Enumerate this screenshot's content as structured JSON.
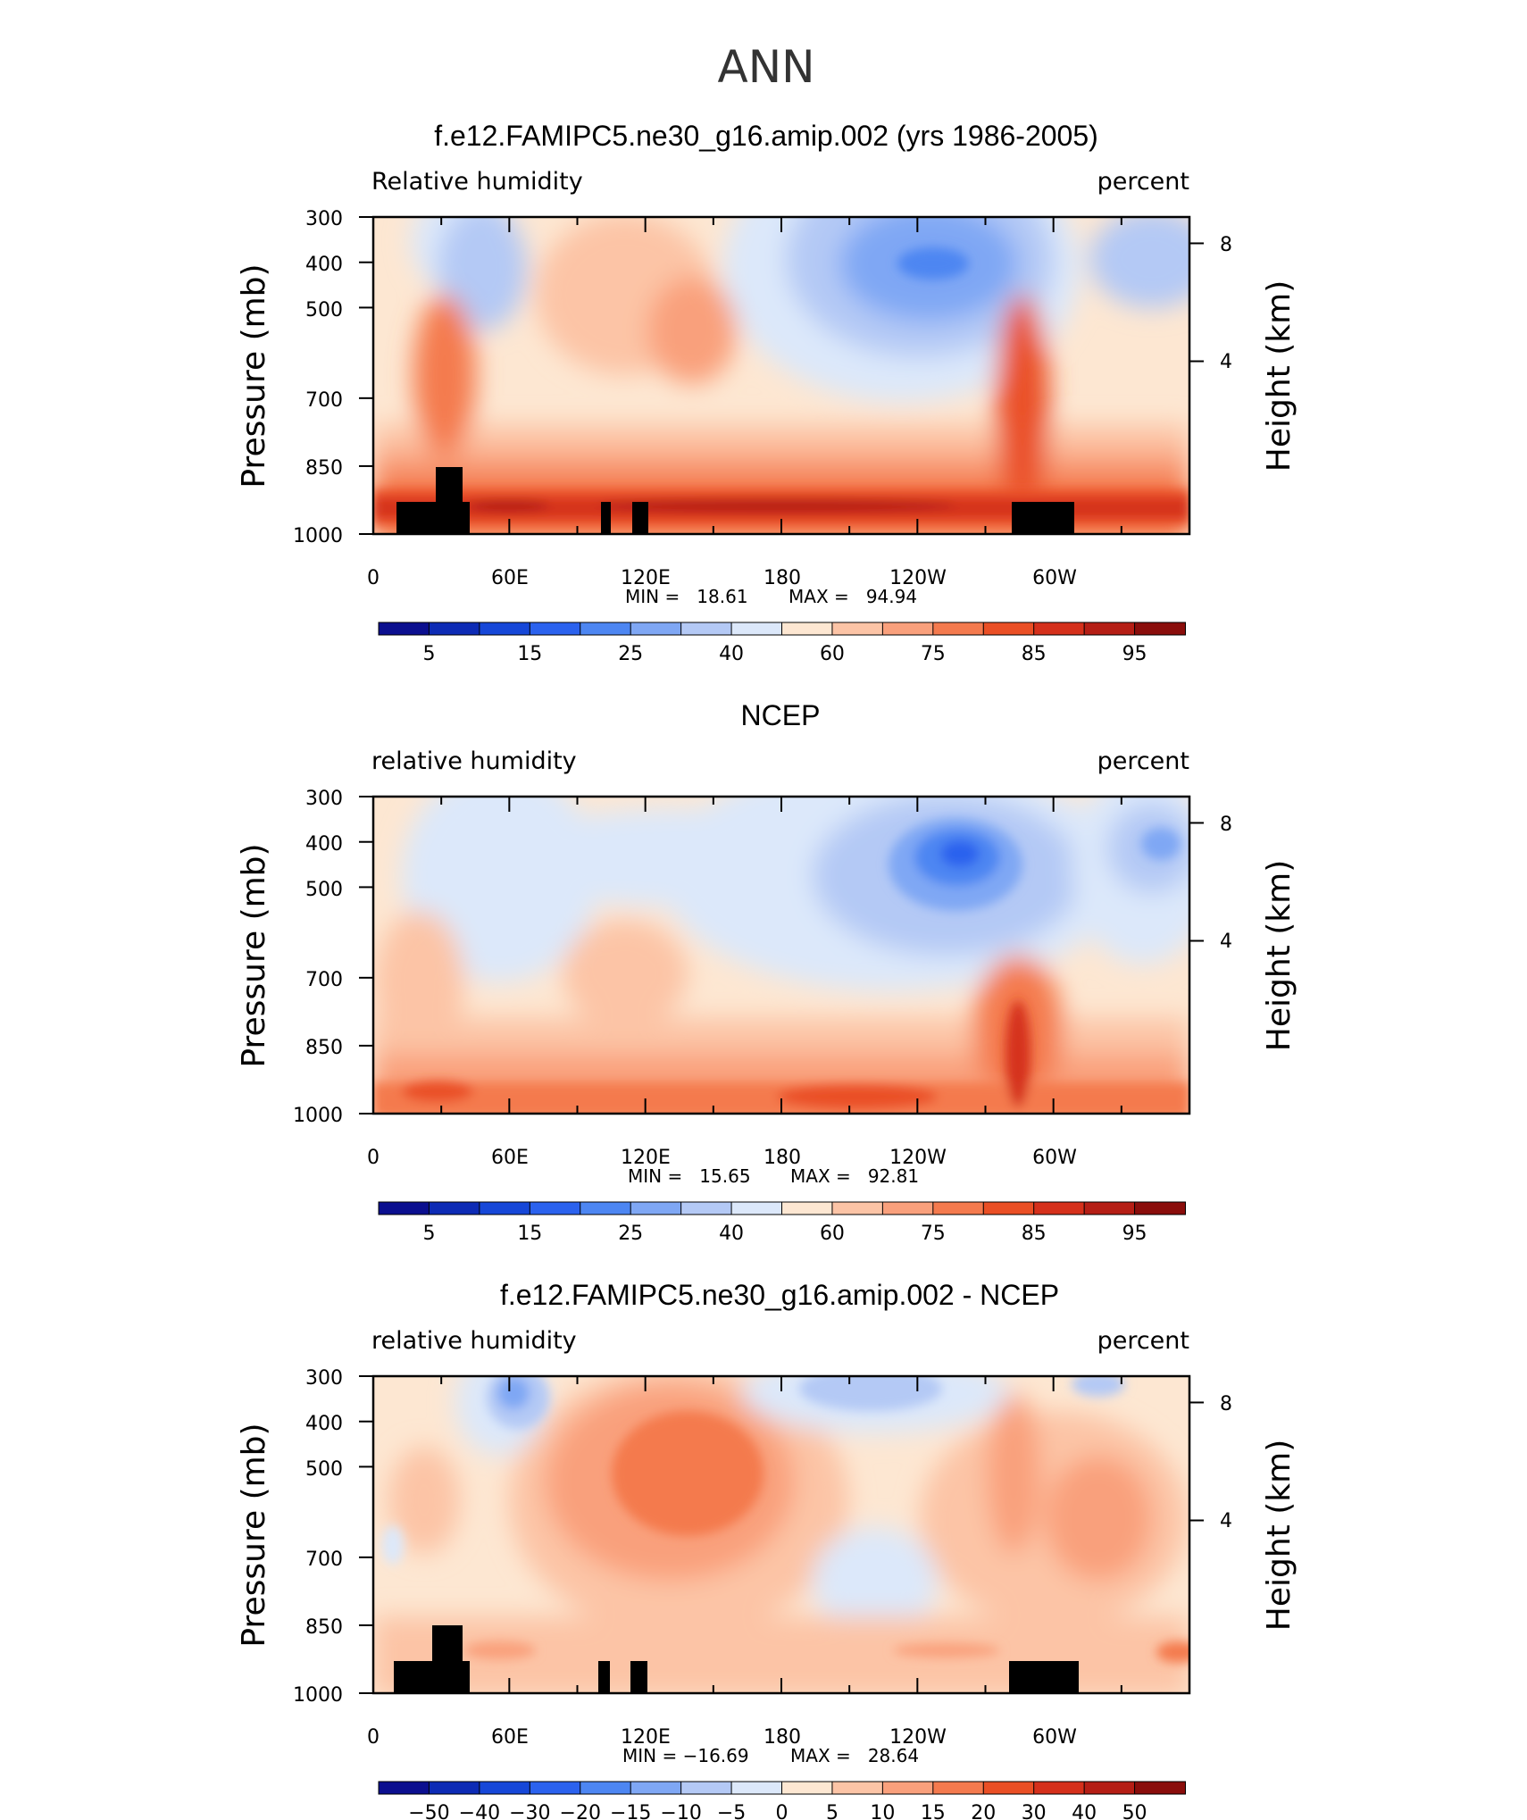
{
  "page_title": "ANN",
  "chart_data": [
    {
      "type": "heatmap",
      "title": "f.e12.FAMIPC5.ne30_g16.amip.002 (yrs 1986-2005)",
      "left_label": "Relative humidity",
      "right_label": "percent",
      "ylabel": "Pressure (mb)",
      "y2label": "Height (km)",
      "x_ticklabels": [
        "0",
        "60E",
        "120E",
        "180",
        "120W",
        "60W"
      ],
      "y_ticklabels": [
        "300",
        "400",
        "500",
        "700",
        "850",
        "1000"
      ],
      "y2_ticklabels": [
        "8",
        "4"
      ],
      "min_text": "MIN =   18.61",
      "max_text": "MAX =   94.94",
      "min": 18.61,
      "max": 94.94,
      "colorbar_labels": [
        "5",
        "15",
        "25",
        "40",
        "60",
        "75",
        "85",
        "95"
      ],
      "colorbar_colors": [
        "#0b0f8f",
        "#0d2bb5",
        "#1647d8",
        "#2b62ee",
        "#4d86f2",
        "#7fa7f4",
        "#b4c9f5",
        "#dce8fa",
        "#fde7d2",
        "#fcc4a6",
        "#f9a07c",
        "#f47a4e",
        "#ea4f25",
        "#d5301b",
        "#b51e15",
        "#8a0d0b"
      ],
      "shading": "relative humidity 18.61–94.94 %: dry (blue) minima near 400 mb around 130W–170W and 40E and 20W; moist (red) boundary layer below 850 mb; black terrain masks"
    },
    {
      "type": "heatmap",
      "title": "NCEP",
      "left_label": "relative humidity",
      "right_label": "percent",
      "ylabel": "Pressure (mb)",
      "y2label": "Height (km)",
      "x_ticklabels": [
        "0",
        "60E",
        "120E",
        "180",
        "120W",
        "60W"
      ],
      "y_ticklabels": [
        "300",
        "400",
        "500",
        "700",
        "850",
        "1000"
      ],
      "y2_ticklabels": [
        "8",
        "4"
      ],
      "min_text": "MIN =   15.65",
      "max_text": "MAX =   92.81",
      "min": 15.65,
      "max": 92.81,
      "colorbar_labels": [
        "5",
        "15",
        "25",
        "40",
        "60",
        "75",
        "85",
        "95"
      ],
      "colorbar_colors": [
        "#0b0f8f",
        "#0d2bb5",
        "#1647d8",
        "#2b62ee",
        "#4d86f2",
        "#7fa7f4",
        "#b4c9f5",
        "#dce8fa",
        "#fde7d2",
        "#fcc4a6",
        "#f9a07c",
        "#f47a4e",
        "#ea4f25",
        "#d5301b",
        "#b51e15",
        "#8a0d0b"
      ],
      "shading": "relative humidity 15.65–92.81 %: broad dry mid troposphere with minimum near 400 mb around 110W–130W; moist lower levels"
    },
    {
      "type": "heatmap",
      "title": "f.e12.FAMIPC5.ne30_g16.amip.002 - NCEP",
      "left_label": "relative humidity",
      "right_label": "percent",
      "ylabel": "Pressure (mb)",
      "y2label": "Height (km)",
      "x_ticklabels": [
        "0",
        "60E",
        "120E",
        "180",
        "120W",
        "60W"
      ],
      "y_ticklabels": [
        "300",
        "400",
        "500",
        "700",
        "850",
        "1000"
      ],
      "y2_ticklabels": [
        "8",
        "4"
      ],
      "min_text": "MIN = −16.69",
      "max_text": "MAX =   28.64",
      "min": -16.69,
      "max": 28.64,
      "colorbar_labels": [
        "−50",
        "−40",
        "−30",
        "−20",
        "−15",
        "−10",
        "−5",
        "0",
        "5",
        "10",
        "15",
        "20",
        "30",
        "40",
        "50"
      ],
      "colorbar_colors": [
        "#0b0f8f",
        "#0d2bb5",
        "#1647d8",
        "#2b62ee",
        "#4d86f2",
        "#7fa7f4",
        "#b4c9f5",
        "#dce8fa",
        "#fde7d2",
        "#fcc4a6",
        "#f9a07c",
        "#f47a4e",
        "#ea4f25",
        "#d5301b",
        "#b51e15",
        "#8a0d0b"
      ],
      "shading": "difference -16.69 to 28.64 %: positive maximum around 120E–150E at 500 mb; negative near upper levels 40E and 180–140W"
    }
  ]
}
